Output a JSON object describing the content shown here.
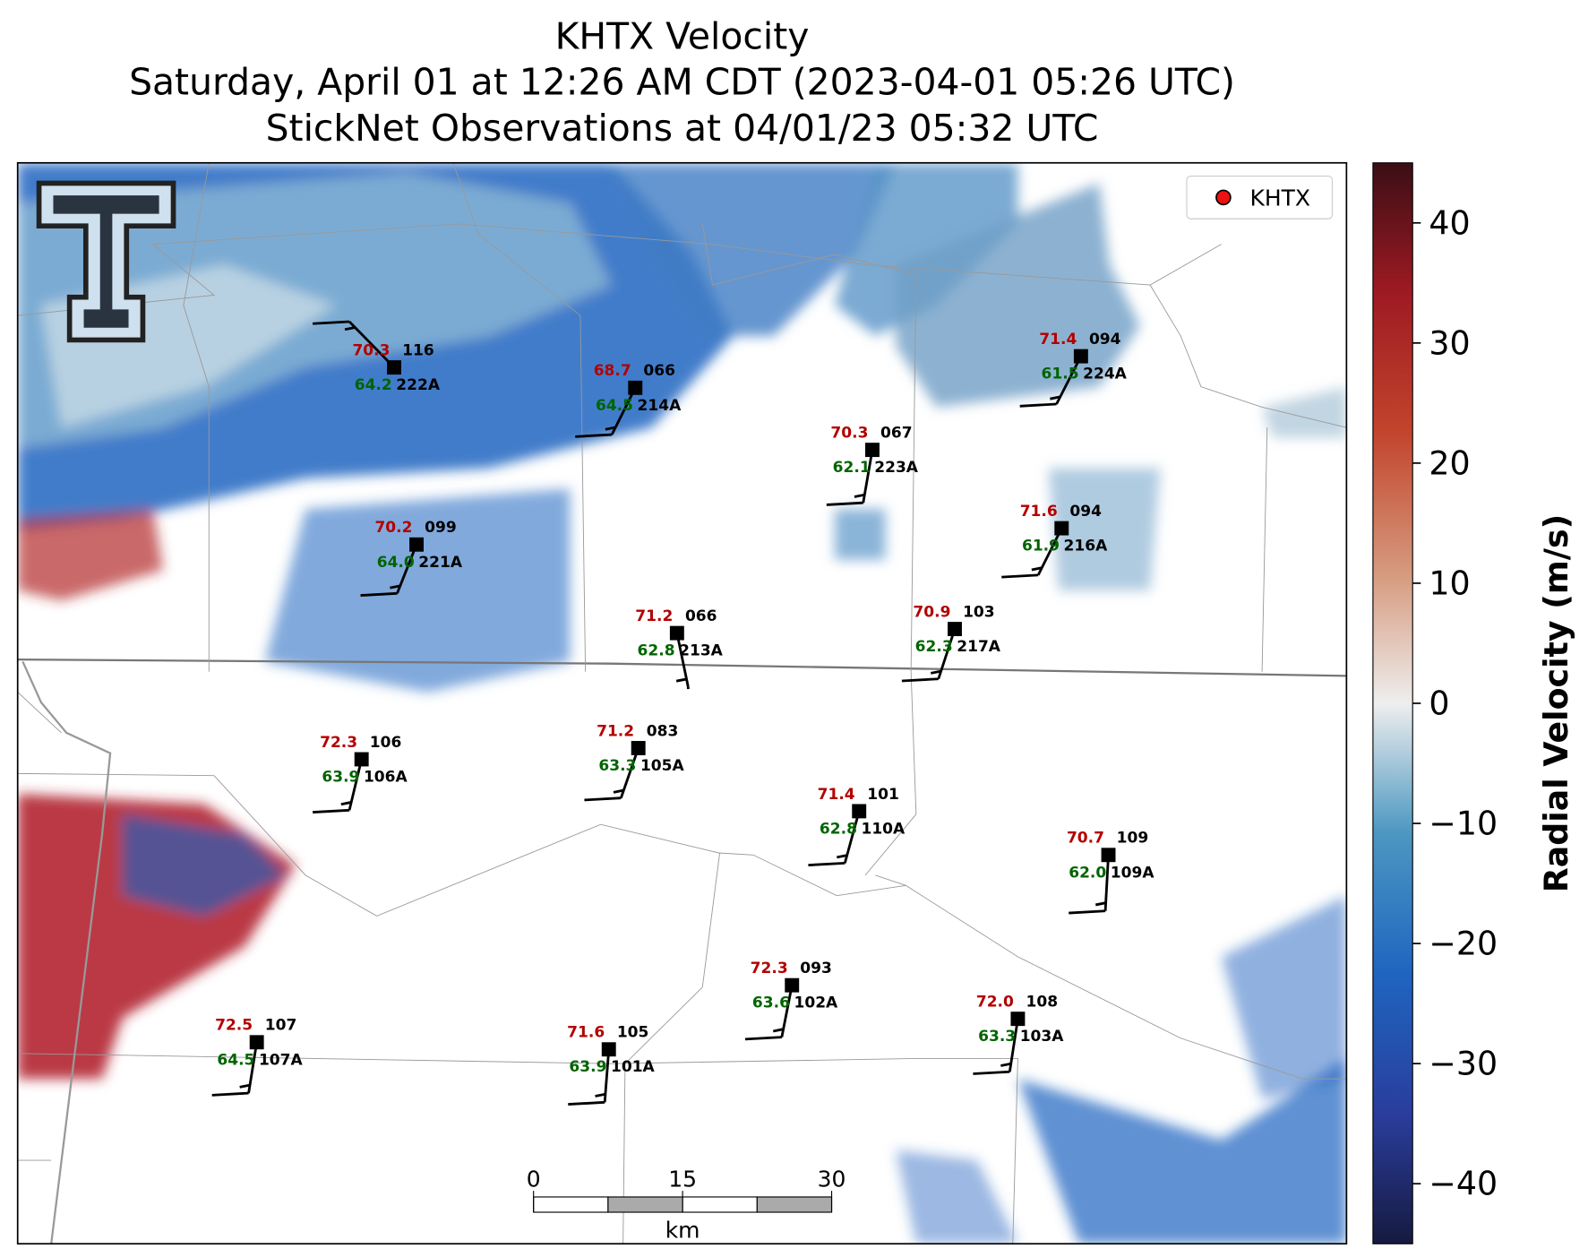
{
  "header": {
    "title_lines": [
      "KHTX Velocity",
      "Saturday, April 01 at 12:26 AM CDT (2023-04-01 05:26 UTC)",
      "StickNet Observations at 04/01/23 05:32 UTC"
    ]
  },
  "legend": {
    "label": "KHTX",
    "color": "#ee1111"
  },
  "colorbar": {
    "label": "Radial Velocity (m/s)",
    "lim": [
      -45,
      45
    ],
    "ticks": [
      {
        "value": -40,
        "label": "−40"
      },
      {
        "value": -30,
        "label": "−30"
      },
      {
        "value": -20,
        "label": "−20"
      },
      {
        "value": -10,
        "label": "−10"
      },
      0,
      10,
      20,
      30,
      40
    ]
  },
  "scale_bar": {
    "ticks": [
      0,
      15,
      30
    ],
    "unit": "km"
  },
  "stations": [
    {
      "id": "222A",
      "temp": "70.3",
      "dewpoint": "64.2",
      "pressure": "116"
    },
    {
      "id": "214A",
      "temp": "68.7",
      "dewpoint": "64.5",
      "pressure": "066"
    },
    {
      "id": "223A",
      "temp": "70.3",
      "dewpoint": "62.1",
      "pressure": "067"
    },
    {
      "id": "224A",
      "temp": "71.4",
      "dewpoint": "61.5",
      "pressure": "094"
    },
    {
      "id": "221A",
      "temp": "70.2",
      "dewpoint": "64.0",
      "pressure": "099"
    },
    {
      "id": "216A",
      "temp": "71.6",
      "dewpoint": "61.9",
      "pressure": "094"
    },
    {
      "id": "213A",
      "temp": "71.2",
      "dewpoint": "62.8",
      "pressure": "066"
    },
    {
      "id": "217A",
      "temp": "70.9",
      "dewpoint": "62.3",
      "pressure": "103"
    },
    {
      "id": "106A",
      "temp": "72.3",
      "dewpoint": "63.9",
      "pressure": "106"
    },
    {
      "id": "105A",
      "temp": "71.2",
      "dewpoint": "63.3",
      "pressure": "083"
    },
    {
      "id": "110A",
      "temp": "71.4",
      "dewpoint": "62.8",
      "pressure": "101"
    },
    {
      "id": "109A",
      "temp": "70.7",
      "dewpoint": "62.0",
      "pressure": "109"
    },
    {
      "id": "102A",
      "temp": "72.3",
      "dewpoint": "63.6",
      "pressure": "093"
    },
    {
      "id": "103A",
      "temp": "72.0",
      "dewpoint": "63.3",
      "pressure": "108"
    },
    {
      "id": "107A",
      "temp": "72.5",
      "dewpoint": "64.5",
      "pressure": "107"
    },
    {
      "id": "101A",
      "temp": "71.6",
      "dewpoint": "63.9",
      "pressure": "105"
    }
  ]
}
